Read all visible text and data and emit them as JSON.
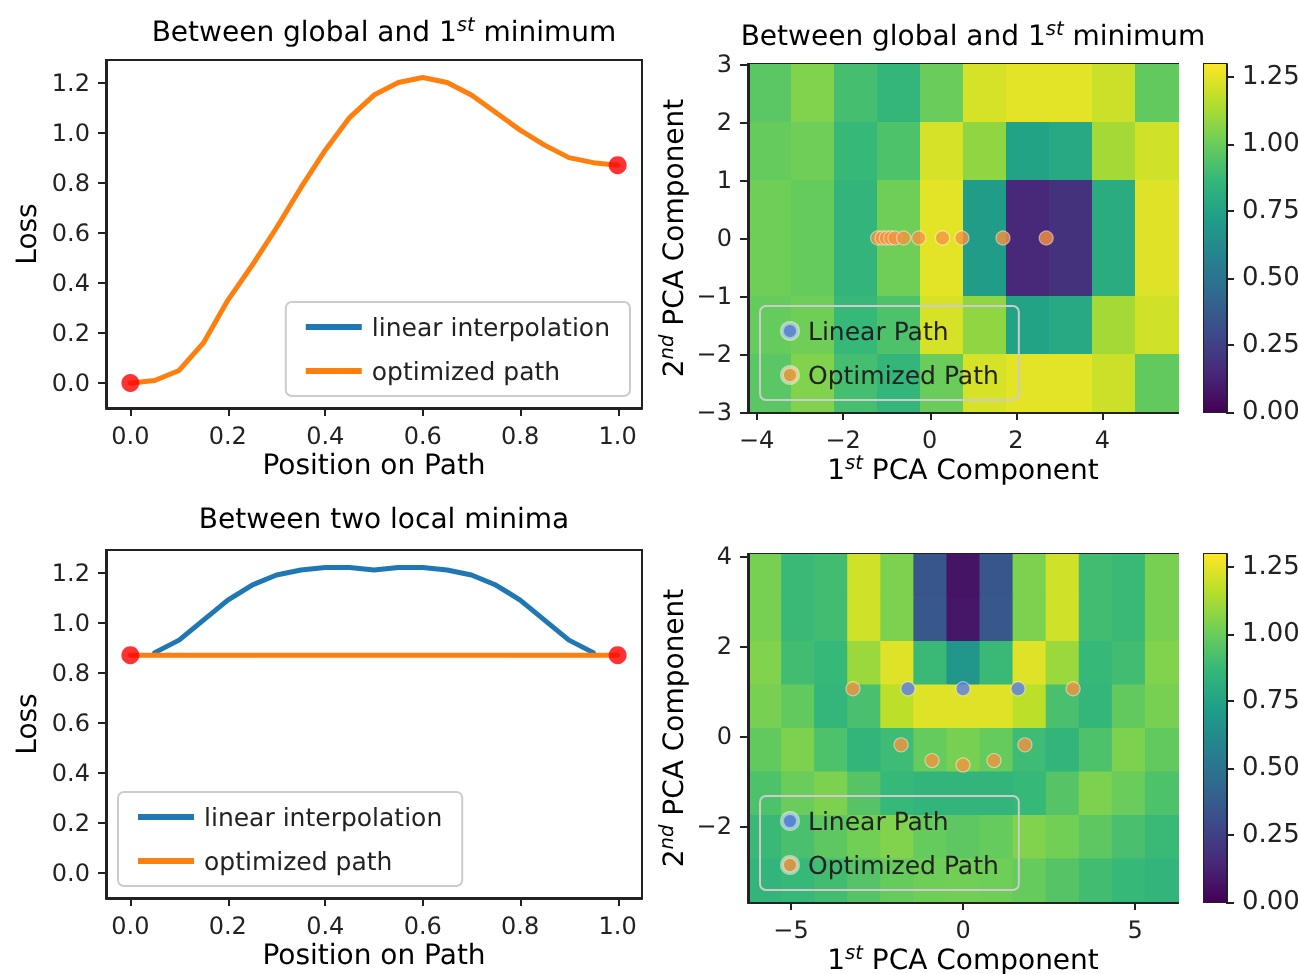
{
  "chart_data": [
    {
      "type": "line",
      "title": "Between global and 1$^{st}$ minimum",
      "xlabel": "Position on Path",
      "ylabel": "Loss",
      "x": [
        0,
        0.05,
        0.1,
        0.15,
        0.2,
        0.25,
        0.3,
        0.35,
        0.4,
        0.45,
        0.5,
        0.55,
        0.6,
        0.65,
        0.7,
        0.75,
        0.8,
        0.85,
        0.9,
        0.95,
        1
      ],
      "xlim": [
        -0.05,
        1.05
      ],
      "ylim": [
        -0.1,
        1.29
      ],
      "xticks": [
        {
          "value": 0,
          "label": "0.0"
        },
        0.2,
        0.4,
        0.6,
        0.8,
        {
          "value": 1,
          "label": "1.0"
        }
      ],
      "yticks": [
        {
          "value": 0,
          "label": "0.0"
        },
        0.2,
        0.4,
        0.6,
        0.8,
        {
          "value": 1,
          "label": "1.0"
        },
        1.2
      ],
      "legend": "bottom right",
      "series": [
        {
          "name": "linear interpolation",
          "color": "#1f77b4",
          "values": [
            null,
            null,
            null,
            null,
            null,
            null,
            null,
            null,
            null,
            null,
            null,
            null,
            null,
            null,
            null,
            null,
            null,
            null,
            null,
            null,
            null
          ]
        },
        {
          "name": "optimized path",
          "color": "#ff7f0e",
          "values": [
            0,
            0.01,
            0.05,
            0.16,
            0.33,
            0.47,
            0.62,
            0.78,
            0.93,
            1.06,
            1.15,
            1.2,
            1.22,
            1.2,
            1.15,
            1.08,
            1.01,
            0.95,
            0.9,
            0.88,
            0.87
          ]
        },
        {
          "type": "scatter",
          "color": "#ff0000",
          "marker": "circle",
          "x": [
            0,
            1
          ],
          "values": [
            0,
            0.87
          ]
        }
      ]
    },
    {
      "type": "heatmap",
      "title": "Between global and 1$^{st}$ minimum",
      "categories": [
        null,
        null,
        null,
        null,
        null,
        null,
        null,
        null,
        null,
        null
      ],
      "y_categories": [
        null,
        null,
        null,
        null,
        null,
        null
      ],
      "cells": [
        [
          0.96,
          1.05,
          0.91,
          0.86,
          1.0,
          1.22,
          1.25,
          1.25,
          1.2,
          0.98
        ],
        [
          0.99,
          1.01,
          0.87,
          0.93,
          1.22,
          1.08,
          0.75,
          0.78,
          1.12,
          1.21
        ],
        [
          1.01,
          0.99,
          0.85,
          1.01,
          1.25,
          0.71,
          0.15,
          0.19,
          0.8,
          1.24
        ],
        [
          1.01,
          0.99,
          0.85,
          1.01,
          1.25,
          0.71,
          0.15,
          0.19,
          0.8,
          1.24
        ],
        [
          0.99,
          1.01,
          0.87,
          0.93,
          1.22,
          1.08,
          0.75,
          0.78,
          1.12,
          1.21
        ],
        [
          0.96,
          1.05,
          0.91,
          0.86,
          1.0,
          1.22,
          1.25,
          1.25,
          1.2,
          0.98
        ]
      ],
      "clim": [
        0,
        1.3
      ],
      "cticks": [
        {
          "value": 0,
          "label": "0.00"
        },
        {
          "value": 0.25,
          "label": "0.25"
        },
        {
          "value": 0.5,
          "label": "0.50"
        },
        {
          "value": 0.75,
          "label": "0.75"
        },
        {
          "value": 1,
          "label": "1.00"
        },
        {
          "value": 1.25,
          "label": "1.25"
        }
      ]
    },
    {
      "type": "scatter",
      "xlabel": "1$^{st}$ PCA Component",
      "ylabel": "2$^{nd}$ PCA Component",
      "xlim": [
        -4.2,
        5.75
      ],
      "ylim": [
        -3,
        3
      ],
      "xticks": [
        {
          "value": -4,
          "label": "−4"
        },
        {
          "value": -2,
          "label": "−2"
        },
        0,
        2,
        4
      ],
      "yticks": [
        {
          "value": -3,
          "label": "−3"
        },
        {
          "value": -2,
          "label": "−2"
        },
        {
          "value": -1,
          "label": "−1"
        },
        0,
        1,
        2,
        3
      ],
      "legend": "bottom left",
      "marker": "circle",
      "series": [
        {
          "name": "Linear Path",
          "color": "#5b7be8"
        },
        {
          "name": "Optimized Path",
          "color": "#f5923e",
          "x": [
            -1.2,
            -1.1,
            -1.0,
            -0.9,
            -0.8,
            -0.6,
            -0.25,
            0.3,
            0.75,
            1.7,
            2.7
          ],
          "values": [
            0,
            0,
            0,
            0,
            0,
            0,
            0,
            0,
            0,
            0,
            0
          ]
        }
      ]
    },
    {
      "type": "line",
      "title": "Between two local minima",
      "xlabel": "Position on Path",
      "ylabel": "Loss",
      "x": [
        0,
        0.05,
        0.1,
        0.15,
        0.2,
        0.25,
        0.3,
        0.35,
        0.4,
        0.45,
        0.5,
        0.55,
        0.6,
        0.65,
        0.7,
        0.75,
        0.8,
        0.85,
        0.9,
        0.95,
        1
      ],
      "xlim": [
        -0.05,
        1.05
      ],
      "ylim": [
        -0.1,
        1.29
      ],
      "xticks": [
        {
          "value": 0,
          "label": "0.0"
        },
        0.2,
        0.4,
        0.6,
        0.8,
        {
          "value": 1,
          "label": "1.0"
        }
      ],
      "yticks": [
        {
          "value": 0,
          "label": "0.0"
        },
        0.2,
        0.4,
        0.6,
        0.8,
        {
          "value": 1,
          "label": "1.0"
        },
        1.2
      ],
      "legend": "bottom left",
      "series": [
        {
          "name": "linear interpolation",
          "color": "#1f77b4",
          "values": [
            null,
            0.88,
            0.93,
            1.01,
            1.09,
            1.15,
            1.19,
            1.21,
            1.22,
            1.22,
            1.21,
            1.22,
            1.22,
            1.21,
            1.19,
            1.15,
            1.09,
            1.01,
            0.93,
            0.88,
            null
          ]
        },
        {
          "name": "optimized path",
          "color": "#ff7f0e",
          "values": [
            0.87,
            0.87,
            0.87,
            0.87,
            0.87,
            0.87,
            0.87,
            0.87,
            0.87,
            0.87,
            0.87,
            0.87,
            0.87,
            0.87,
            0.87,
            0.87,
            0.87,
            0.87,
            0.87,
            0.87,
            0.87
          ]
        },
        {
          "type": "scatter",
          "color": "#ff0000",
          "marker": "circle",
          "x": [
            0,
            1
          ],
          "values": [
            0.87,
            0.87
          ]
        }
      ]
    },
    {
      "type": "heatmap",
      "categories": [
        null,
        null,
        null,
        null,
        null,
        null,
        null,
        null,
        null,
        null,
        null,
        null,
        null
      ],
      "y_categories": [
        null,
        null,
        null,
        null,
        null,
        null,
        null,
        null
      ],
      "cells": [
        [
          1.03,
          0.88,
          0.9,
          1.21,
          1.04,
          0.35,
          0.07,
          0.35,
          1.04,
          1.21,
          0.9,
          0.88,
          1.03
        ],
        [
          1.03,
          0.88,
          0.9,
          1.21,
          1.04,
          0.36,
          0.08,
          0.36,
          1.04,
          1.21,
          0.9,
          0.88,
          1.03
        ],
        [
          1.05,
          0.9,
          0.87,
          1.1,
          1.24,
          0.88,
          0.68,
          0.88,
          1.24,
          1.1,
          0.87,
          0.9,
          1.05
        ],
        [
          1.03,
          0.98,
          0.86,
          0.92,
          1.17,
          1.24,
          1.24,
          1.24,
          1.17,
          0.92,
          0.86,
          0.98,
          1.03
        ],
        [
          0.98,
          1.04,
          0.93,
          0.85,
          0.89,
          0.99,
          1.03,
          0.99,
          0.89,
          0.85,
          0.93,
          1.04,
          0.98
        ],
        [
          0.93,
          1.0,
          1.04,
          0.95,
          0.87,
          0.85,
          0.85,
          0.85,
          0.87,
          0.95,
          1.04,
          1.0,
          0.93
        ],
        [
          0.88,
          0.92,
          0.97,
          1.02,
          1.05,
          0.99,
          0.97,
          0.99,
          1.05,
          1.02,
          0.97,
          0.92,
          0.88
        ],
        [
          0.85,
          0.87,
          0.9,
          0.95,
          0.99,
          1.01,
          1.02,
          1.01,
          0.99,
          0.95,
          0.9,
          0.87,
          0.85
        ]
      ],
      "clim": [
        0,
        1.3
      ],
      "cticks": [
        {
          "value": 0,
          "label": "0.00"
        },
        {
          "value": 0.25,
          "label": "0.25"
        },
        {
          "value": 0.5,
          "label": "0.50"
        },
        {
          "value": 0.75,
          "label": "0.75"
        },
        {
          "value": 1,
          "label": "1.00"
        },
        {
          "value": 1.25,
          "label": "1.25"
        }
      ]
    },
    {
      "type": "scatter",
      "xlabel": "1$^{st}$ PCA Component",
      "ylabel": "2$^{nd}$ PCA Component",
      "xlim": [
        -6.25,
        6.25
      ],
      "ylim": [
        -3.7,
        4.05
      ],
      "xticks": [
        {
          "value": -5,
          "label": "−5"
        },
        0,
        5
      ],
      "yticks": [
        {
          "value": -2,
          "label": "−2"
        },
        0,
        2,
        4
      ],
      "legend": "bottom left",
      "marker": "circle",
      "series": [
        {
          "name": "Linear Path",
          "color": "#5b7be8",
          "x": [
            -1.6,
            0,
            1.6
          ],
          "values": [
            1.05,
            1.05,
            1.05
          ]
        },
        {
          "name": "Optimized Path",
          "color": "#f5923e",
          "x": [
            -3.2,
            -1.8,
            -0.9,
            0,
            0.9,
            1.8,
            3.2
          ],
          "values": [
            1.05,
            -0.2,
            -0.55,
            -0.65,
            -0.55,
            -0.2,
            1.05
          ]
        }
      ]
    }
  ]
}
